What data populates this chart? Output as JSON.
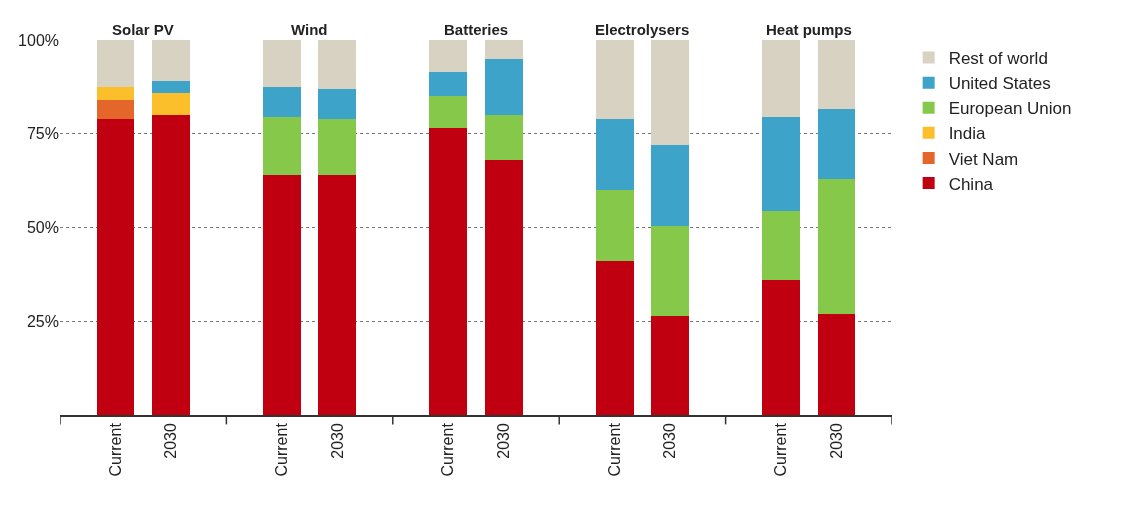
{
  "chart_data": {
    "type": "bar",
    "stacked": true,
    "categories": [
      "Current",
      "2030",
      "Current",
      "2030",
      "Current",
      "2030",
      "Current",
      "2030",
      "Current",
      "2030"
    ],
    "annotations": [
      "Solar PV",
      "Wind",
      "Batteries",
      "Electrolysers",
      "Heat pumps"
    ],
    "series": [
      {
        "name": "China",
        "color": "#c00010",
        "values": [
          79,
          80,
          64,
          64,
          76.5,
          68,
          41,
          26.5,
          36,
          27
        ]
      },
      {
        "name": "Viet Nam",
        "color": "#e5662a",
        "values": [
          5,
          0,
          0,
          0,
          0,
          0,
          0,
          0,
          0,
          0
        ]
      },
      {
        "name": "India",
        "color": "#fbbf2c",
        "values": [
          3.5,
          6,
          0,
          0,
          0,
          0,
          0,
          0,
          0,
          0
        ]
      },
      {
        "name": "European Union",
        "color": "#86c84a",
        "values": [
          0,
          0,
          15.5,
          15,
          8.5,
          12,
          19,
          24,
          18.5,
          36
        ]
      },
      {
        "name": "United States",
        "color": "#3ea3c8",
        "values": [
          0,
          3,
          8,
          8,
          6.5,
          15,
          19,
          21.5,
          25,
          18.5
        ]
      },
      {
        "name": "Rest of world",
        "color": "#d8d2c2",
        "values": [
          12.5,
          11,
          12.5,
          13,
          8.5,
          5,
          21,
          28,
          20.5,
          18.5
        ]
      }
    ],
    "ylim": [
      0,
      100
    ],
    "yticks": [
      {
        "value": 25,
        "label": "25%"
      },
      {
        "value": 50,
        "label": "50%"
      },
      {
        "value": 75,
        "label": "75%"
      },
      {
        "value": 100,
        "label": "100%"
      }
    ],
    "grid": "y",
    "legend": "right"
  }
}
